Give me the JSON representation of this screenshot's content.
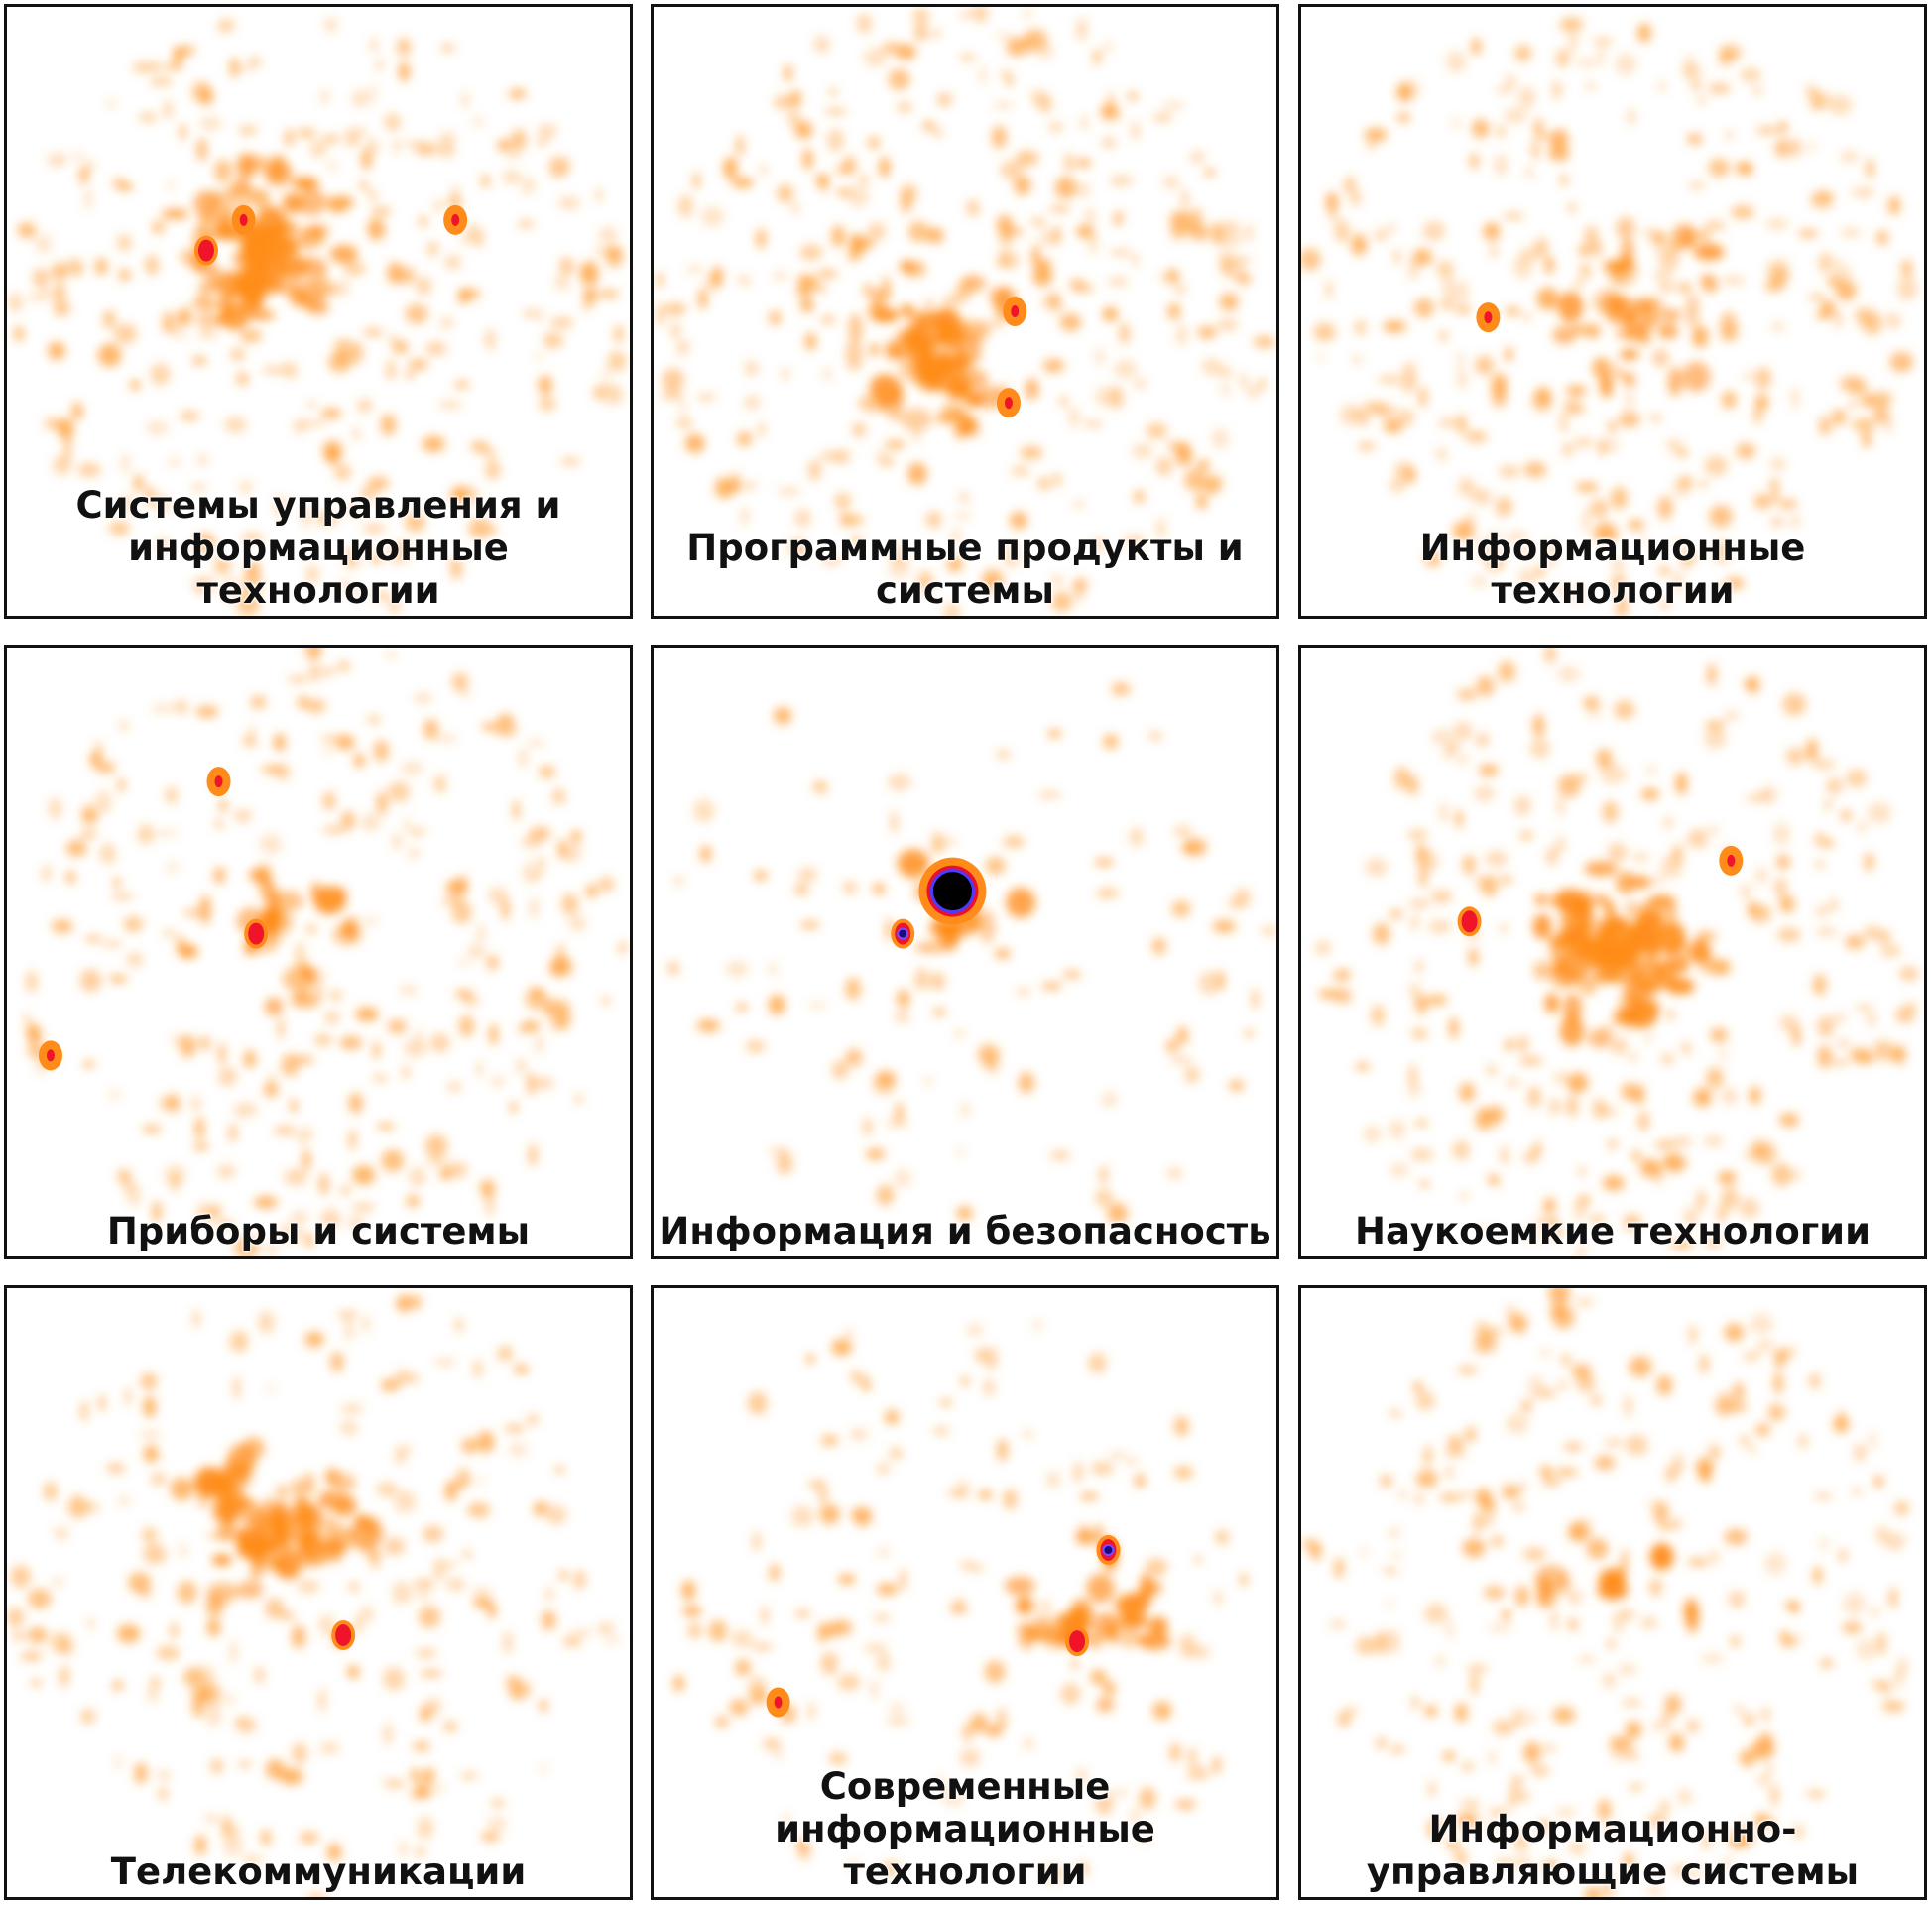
{
  "panels": [
    {
      "label": [
        "Системы управления и",
        "информационные",
        "технологии"
      ]
    },
    {
      "label": [
        "Программные продукты и",
        "системы"
      ]
    },
    {
      "label": [
        "Информационные",
        "технологии"
      ]
    },
    {
      "label": [
        "Приборы и системы"
      ]
    },
    {
      "label": [
        "Информация и безопасность"
      ]
    },
    {
      "label": [
        "Наукоемкие технологии"
      ]
    },
    {
      "label": [
        "Телекоммуникации"
      ]
    },
    {
      "label": [
        "Современные",
        "информационные",
        "технологии"
      ]
    },
    {
      "label": [
        "Информационно-",
        "управляющие системы"
      ]
    }
  ]
}
